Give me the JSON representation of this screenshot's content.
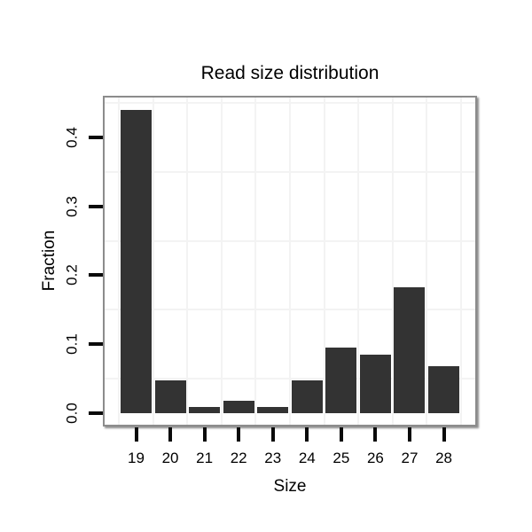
{
  "title": "Read size distribution",
  "chart_data": {
    "type": "bar",
    "title": "Read size distribution",
    "xlabel": "Size",
    "ylabel": "Fraction",
    "categories": [
      "19",
      "20",
      "21",
      "22",
      "23",
      "24",
      "25",
      "26",
      "27",
      "28"
    ],
    "values": [
      0.44,
      0.047,
      0.009,
      0.018,
      0.009,
      0.047,
      0.095,
      0.085,
      0.182,
      0.068
    ],
    "y_ticks": [
      "0.0",
      "0.1",
      "0.2",
      "0.3",
      "0.4"
    ],
    "ylim": [
      0,
      0.46
    ],
    "grid": "minor gridlines only, at half-steps between category centers and between y ticks",
    "legend_position": "none",
    "colors": {
      "bar": "#333333",
      "gridline": "#f3f3f3",
      "panel_border": "#8c8c8c",
      "tick": "#0a0a0a",
      "text": "#000000",
      "background": "#ffffff"
    }
  }
}
